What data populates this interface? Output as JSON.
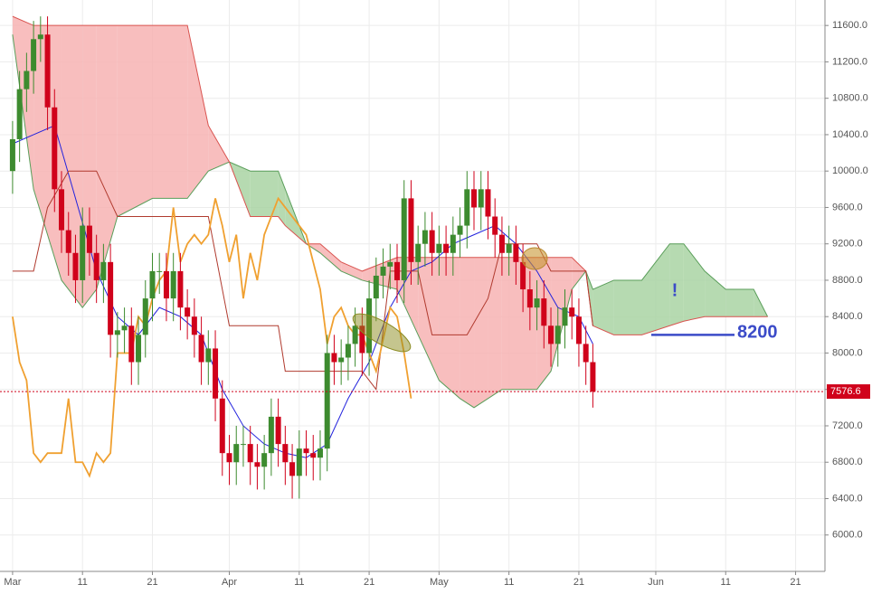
{
  "chart_data": {
    "type": "candlestick",
    "xlim": [
      -1.8,
      116.2
    ],
    "ylim": [
      5600,
      11880
    ],
    "xticks": [
      {
        "value": 0,
        "label": "Mar"
      },
      {
        "value": 10,
        "label": "11"
      },
      {
        "value": 20,
        "label": "21"
      },
      {
        "value": 31,
        "label": "Apr"
      },
      {
        "value": 41,
        "label": "11"
      },
      {
        "value": 51,
        "label": "21"
      },
      {
        "value": 61,
        "label": "May"
      },
      {
        "value": 71,
        "label": "11"
      },
      {
        "value": 81,
        "label": "21"
      },
      {
        "value": 92,
        "label": "Jun"
      },
      {
        "value": 102,
        "label": "11"
      },
      {
        "value": 112,
        "label": "21"
      }
    ],
    "yticks": [
      {
        "value": 6000,
        "label": "6000.0"
      },
      {
        "value": 6400,
        "label": "6400.0"
      },
      {
        "value": 6800,
        "label": "6800.0"
      },
      {
        "value": 7200,
        "label": "7200.0"
      },
      {
        "value": 7600,
        "label": "7600.0"
      },
      {
        "value": 8000,
        "label": "8000.0"
      },
      {
        "value": 8400,
        "label": "8400.0"
      },
      {
        "value": 8800,
        "label": "8800.0"
      },
      {
        "value": 9200,
        "label": "9200.0"
      },
      {
        "value": 9600,
        "label": "9600.0"
      },
      {
        "value": 10000,
        "label": "10000.0"
      },
      {
        "value": 10400,
        "label": "10400.0"
      },
      {
        "value": 10800,
        "label": "10800.0"
      },
      {
        "value": 11200,
        "label": "11200.0"
      },
      {
        "value": 11600,
        "label": "11600.0"
      }
    ],
    "grid": true,
    "up_color": "#3d8b2f",
    "down_color": "#d0021b",
    "x": [
      0,
      1,
      2,
      3,
      4,
      5,
      6,
      7,
      8,
      9,
      10,
      11,
      12,
      13,
      14,
      15,
      16,
      17,
      18,
      19,
      20,
      21,
      22,
      23,
      24,
      25,
      26,
      27,
      28,
      29,
      30,
      31,
      32,
      33,
      34,
      35,
      36,
      37,
      38,
      39,
      40,
      41,
      42,
      43,
      44,
      45,
      46,
      47,
      48,
      49,
      50,
      51,
      52,
      53,
      54,
      55,
      56,
      57,
      58,
      59,
      60,
      61,
      62,
      63,
      64,
      65,
      66,
      67,
      68,
      69,
      70,
      71,
      72,
      73,
      74,
      75,
      76,
      77,
      78,
      79,
      80,
      81,
      82,
      83
    ],
    "open": [
      10000,
      10350,
      10900,
      11100,
      11450,
      11500,
      10700,
      9800,
      9350,
      9100,
      8800,
      9400,
      9100,
      8800,
      9000,
      8200,
      8250,
      8300,
      7900,
      8200,
      8600,
      8900,
      8900,
      8600,
      8900,
      8500,
      8400,
      8200,
      7900,
      8050,
      7500,
      6900,
      6800,
      7000,
      7000,
      6800,
      6750,
      6900,
      7300,
      7000,
      6800,
      6650,
      6950,
      6900,
      6850,
      6950,
      8000,
      7900,
      7950,
      8100,
      8300,
      8000,
      8600,
      8850,
      8950,
      9000,
      8800,
      9700,
      9000,
      9200,
      9350,
      9100,
      9200,
      9100,
      9300,
      9400,
      9800,
      9600,
      9800,
      9500,
      9300,
      9100,
      9200,
      9000,
      8700,
      8500,
      8600,
      8300,
      8100,
      8300,
      8500,
      8400,
      8100,
      7900
    ],
    "high": [
      10550,
      11100,
      11300,
      11650,
      11700,
      11700,
      10900,
      10000,
      9550,
      9300,
      9600,
      9600,
      9300,
      9200,
      9200,
      8450,
      8500,
      8500,
      8400,
      8800,
      9100,
      9100,
      9100,
      9100,
      9100,
      8700,
      8600,
      8400,
      8250,
      8250,
      7700,
      7100,
      7200,
      7200,
      7200,
      7000,
      7100,
      7500,
      7500,
      7200,
      7000,
      7150,
      7150,
      7100,
      7150,
      8200,
      8200,
      8150,
      8300,
      8500,
      8500,
      8800,
      9050,
      9150,
      9200,
      9200,
      9900,
      9900,
      9400,
      9550,
      9550,
      9400,
      9400,
      9500,
      9600,
      10000,
      10000,
      10000,
      10000,
      9700,
      9500,
      9400,
      9400,
      9200,
      8900,
      8800,
      8800,
      8500,
      8500,
      8700,
      8700,
      8600,
      8300,
      8100
    ],
    "low": [
      9750,
      10100,
      10650,
      10850,
      11200,
      10450,
      9550,
      9100,
      8850,
      8550,
      8550,
      8850,
      8550,
      8550,
      7950,
      7950,
      8000,
      7650,
      7650,
      7950,
      8350,
      8650,
      8350,
      8350,
      8250,
      8150,
      7950,
      7650,
      7650,
      7250,
      6650,
      6550,
      6550,
      6750,
      6550,
      6500,
      6500,
      6650,
      6750,
      6550,
      6400,
      6400,
      6650,
      6600,
      6600,
      6700,
      7650,
      7650,
      7700,
      7850,
      7750,
      7750,
      8350,
      8600,
      8700,
      8550,
      8550,
      8750,
      8750,
      8950,
      8850,
      8850,
      8850,
      8850,
      9050,
      9150,
      9350,
      9350,
      9250,
      9050,
      8850,
      8850,
      8750,
      8450,
      8250,
      8250,
      8050,
      7850,
      7850,
      8050,
      8150,
      7850,
      7650,
      7400
    ],
    "close": [
      10350,
      10900,
      11100,
      11450,
      11500,
      10700,
      9800,
      9350,
      9100,
      8800,
      9400,
      9100,
      8800,
      9000,
      8200,
      8250,
      8300,
      7900,
      8200,
      8600,
      8900,
      8900,
      8600,
      8900,
      8500,
      8400,
      8200,
      7900,
      8050,
      7500,
      6900,
      6800,
      7000,
      7000,
      6800,
      6750,
      6900,
      7300,
      7000,
      6800,
      6650,
      6950,
      6900,
      6850,
      6950,
      8000,
      7900,
      7950,
      8100,
      8300,
      8000,
      8600,
      8850,
      8950,
      9000,
      8800,
      9700,
      9000,
      9200,
      9350,
      9100,
      9200,
      9100,
      9300,
      9400,
      9800,
      9600,
      9800,
      9500,
      9300,
      9100,
      9200,
      9000,
      8700,
      8500,
      8600,
      8300,
      8100,
      8300,
      8500,
      8400,
      8100,
      7900,
      7576.6
    ],
    "cloud": {
      "x": [
        0,
        3,
        7,
        10,
        12,
        15,
        20,
        25,
        28,
        31,
        34,
        38,
        39,
        42,
        44,
        47,
        50,
        55,
        58,
        61,
        64,
        66,
        68,
        70,
        75,
        77,
        80,
        82,
        83,
        86,
        90,
        94,
        96,
        99,
        102,
        106,
        108
      ],
      "span_a": [
        11500,
        9800,
        8800,
        8500,
        8700,
        9500,
        9700,
        9700,
        10000,
        10100,
        10000,
        10000,
        9800,
        9200,
        9100,
        8900,
        8800,
        8700,
        8200,
        7700,
        7500,
        7400,
        7500,
        7600,
        7600,
        7800,
        8700,
        8900,
        8700,
        8800,
        8800,
        9200,
        9200,
        8900,
        8700,
        8700,
        8400
      ],
      "span_b": [
        11700,
        11600,
        11600,
        11600,
        11600,
        11600,
        11600,
        11600,
        10500,
        10100,
        9500,
        9500,
        9400,
        9200,
        9200,
        9000,
        8900,
        9050,
        9050,
        9050,
        9050,
        9050,
        9050,
        9050,
        9050,
        9050,
        9050,
        8900,
        8300,
        8200,
        8200,
        8300,
        8350,
        8400,
        8400,
        8400,
        8400
      ],
      "up_color": "#5a9e5a",
      "down_color": "#d9534f",
      "up_fill": "#a9d4a3",
      "down_fill": "#f7b3b3"
    },
    "overlays": [
      {
        "color": "#2222dd",
        "x": [
          0,
          3,
          6,
          9,
          12,
          15,
          18,
          21,
          24,
          27,
          30,
          33,
          36,
          39,
          42,
          45,
          48,
          51,
          54,
          57,
          60,
          63,
          66,
          69,
          72,
          75,
          78,
          81,
          83
        ],
        "values": [
          10300,
          10400,
          10500,
          9700,
          8900,
          8400,
          8200,
          8500,
          8400,
          8200,
          7600,
          7200,
          7000,
          6900,
          6850,
          7000,
          7500,
          7900,
          8500,
          8900,
          9000,
          9200,
          9300,
          9400,
          9200,
          8900,
          8500,
          8400,
          8100
        ]
      },
      {
        "color": "#b03a2e",
        "x": [
          0,
          3,
          5,
          8,
          12,
          15,
          28,
          31,
          38,
          39,
          48,
          50,
          52,
          54,
          58,
          60,
          65,
          68,
          70,
          75,
          77,
          82,
          83
        ],
        "values": [
          8900,
          8900,
          9600,
          10000,
          10000,
          9500,
          9500,
          8300,
          8300,
          7800,
          7800,
          7800,
          7600,
          8900,
          8900,
          8200,
          8200,
          8600,
          9200,
          9200,
          8900,
          8900,
          8300
        ]
      },
      {
        "color": "#f0a030",
        "x": [
          0,
          1,
          2,
          3,
          4,
          5,
          7,
          8,
          9,
          10,
          11,
          12,
          13,
          14,
          15,
          17,
          18,
          19,
          20,
          21,
          22,
          23,
          24,
          25,
          26,
          27,
          28,
          29,
          30,
          31,
          32,
          33,
          34,
          35,
          36,
          37,
          38,
          39,
          40,
          41,
          42,
          43,
          44,
          45,
          46,
          47,
          48,
          49,
          50,
          52,
          54,
          55,
          56,
          57
        ],
        "values": [
          8400,
          7900,
          7700,
          6900,
          6800,
          6900,
          6900,
          7500,
          6800,
          6800,
          6650,
          6900,
          6800,
          6900,
          8000,
          8000,
          8400,
          8300,
          8600,
          8800,
          8900,
          9600,
          9000,
          9200,
          9300,
          9200,
          9300,
          9700,
          9400,
          9000,
          9300,
          8600,
          9100,
          8800,
          9300,
          9500,
          9700,
          9600,
          9500,
          9400,
          9300,
          9000,
          8700,
          8100,
          8400,
          8500,
          8300,
          8200,
          8200,
          7800,
          8500,
          8400,
          8000,
          7500
        ]
      }
    ],
    "last_price": 7576.6,
    "level": 8200,
    "annotation": "!"
  }
}
